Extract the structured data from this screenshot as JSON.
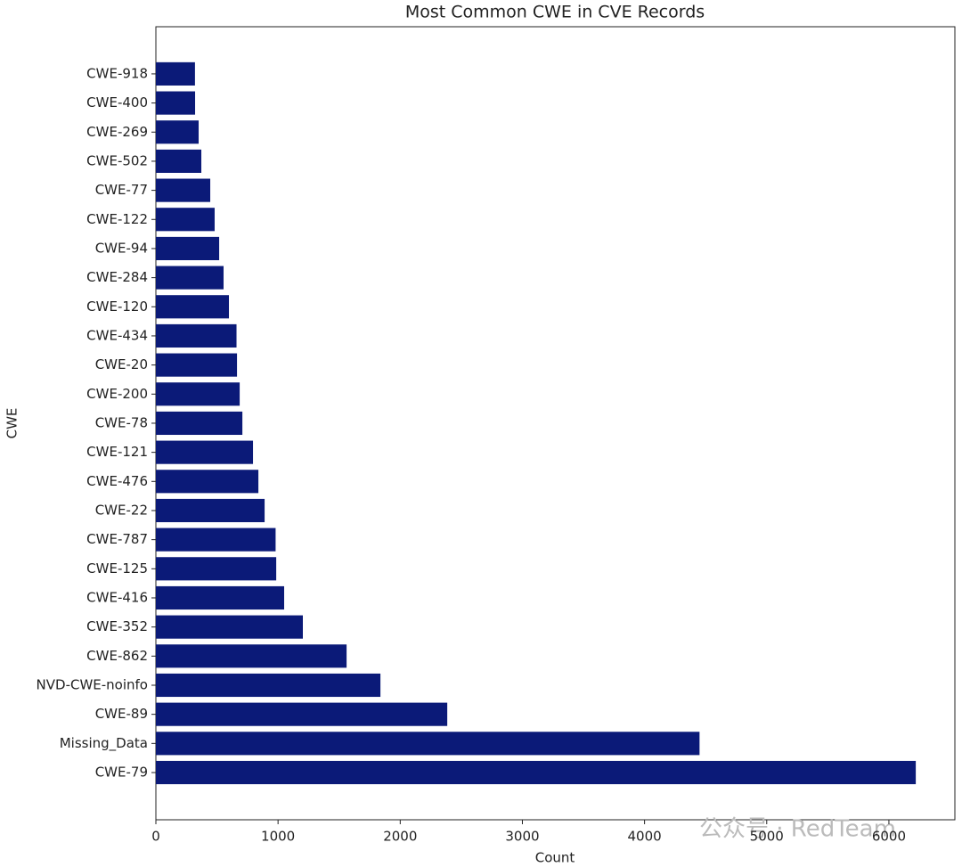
{
  "chart_data": {
    "type": "barh",
    "title": "Most Common CWE in CVE Records",
    "x_label": "Count",
    "y_label": "CWE",
    "categories": [
      "CWE-79",
      "Missing_Data",
      "CWE-89",
      "NVD-CWE-noinfo",
      "CWE-862",
      "CWE-352",
      "CWE-416",
      "CWE-125",
      "CWE-787",
      "CWE-22",
      "CWE-476",
      "CWE-121",
      "CWE-78",
      "CWE-200",
      "CWE-20",
      "CWE-434",
      "CWE-120",
      "CWE-284",
      "CWE-94",
      "CWE-122",
      "CWE-77",
      "CWE-502",
      "CWE-269",
      "CWE-400",
      "CWE-918"
    ],
    "values": [
      6220,
      4450,
      2385,
      1838,
      1561,
      1203,
      1050,
      985,
      980,
      890,
      839,
      795,
      708,
      686,
      664,
      660,
      598,
      554,
      518,
      481,
      445,
      372,
      350,
      321,
      320
    ],
    "color": "#0b1a78",
    "xlim": [
      0,
      6540
    ],
    "xticks": [
      0,
      1000,
      2000,
      3000,
      4000,
      5000,
      6000
    ],
    "watermark": "公众号 · RedTeam"
  }
}
